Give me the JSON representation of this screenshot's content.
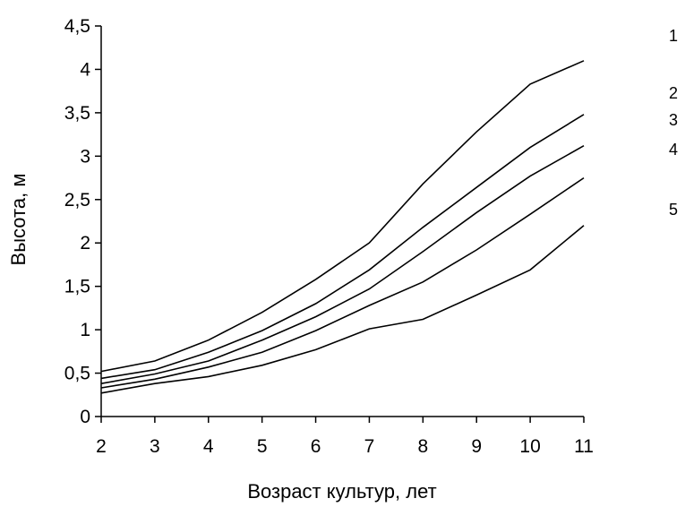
{
  "chart_data": {
    "type": "line",
    "title": "",
    "xlabel": "Возраст культур, лет",
    "ylabel": "Высота, м",
    "x": [
      2,
      3,
      4,
      5,
      6,
      7,
      8,
      9,
      10,
      11
    ],
    "x_tick_labels": [
      "2",
      "3",
      "4",
      "5",
      "6",
      "7",
      "8",
      "9",
      "10",
      "11"
    ],
    "ylim": [
      0,
      4.5
    ],
    "y_ticks": [
      0,
      0.5,
      1,
      1.5,
      2,
      2.5,
      3,
      3.5,
      4,
      4.5
    ],
    "y_tick_labels": [
      "0",
      "0,5",
      "1",
      "1,5",
      "2",
      "2,5",
      "3",
      "3,5",
      "4",
      "4,5"
    ],
    "grid": false,
    "legend": "none",
    "series": [
      {
        "label": "1",
        "values": [
          0.52,
          0.64,
          0.88,
          1.2,
          1.58,
          2.0,
          2.68,
          3.28,
          3.83,
          4.1
        ]
      },
      {
        "label": "2",
        "values": [
          0.44,
          0.54,
          0.74,
          0.99,
          1.3,
          1.69,
          2.18,
          2.64,
          3.1,
          3.48
        ]
      },
      {
        "label": "3",
        "values": [
          0.38,
          0.49,
          0.64,
          0.88,
          1.15,
          1.47,
          1.9,
          2.35,
          2.77,
          3.12
        ]
      },
      {
        "label": "4",
        "values": [
          0.33,
          0.43,
          0.57,
          0.74,
          0.99,
          1.28,
          1.55,
          1.92,
          2.33,
          2.75
        ]
      },
      {
        "label": "5",
        "values": [
          0.27,
          0.38,
          0.46,
          0.59,
          0.77,
          1.01,
          1.12,
          1.4,
          1.69,
          2.2
        ]
      }
    ],
    "line_color": "#000000"
  }
}
